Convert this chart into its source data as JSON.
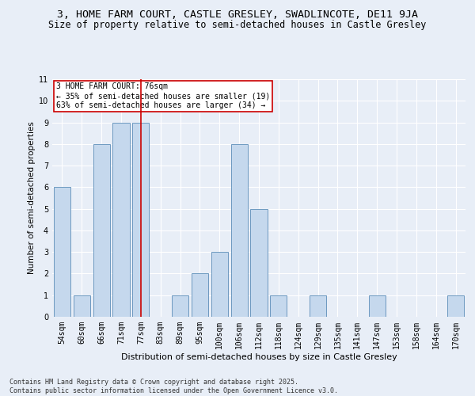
{
  "title1": "3, HOME FARM COURT, CASTLE GRESLEY, SWADLINCOTE, DE11 9JA",
  "title2": "Size of property relative to semi-detached houses in Castle Gresley",
  "xlabel": "Distribution of semi-detached houses by size in Castle Gresley",
  "ylabel": "Number of semi-detached properties",
  "categories": [
    "54sqm",
    "60sqm",
    "66sqm",
    "71sqm",
    "77sqm",
    "83sqm",
    "89sqm",
    "95sqm",
    "100sqm",
    "106sqm",
    "112sqm",
    "118sqm",
    "124sqm",
    "129sqm",
    "135sqm",
    "141sqm",
    "147sqm",
    "153sqm",
    "158sqm",
    "164sqm",
    "170sqm"
  ],
  "values": [
    6,
    1,
    8,
    9,
    9,
    0,
    1,
    2,
    3,
    8,
    5,
    1,
    0,
    1,
    0,
    0,
    1,
    0,
    0,
    0,
    1
  ],
  "bar_color": "#c5d8ed",
  "bar_edge_color": "#5b8db8",
  "highlight_index": 4,
  "vline_color": "#cc0000",
  "annotation_text": "3 HOME FARM COURT: 76sqm\n← 35% of semi-detached houses are smaller (19)\n63% of semi-detached houses are larger (34) →",
  "annotation_box_color": "#ffffff",
  "annotation_box_edge": "#cc0000",
  "ylim": [
    0,
    11
  ],
  "yticks": [
    0,
    1,
    2,
    3,
    4,
    5,
    6,
    7,
    8,
    9,
    10,
    11
  ],
  "background_color": "#e8eef7",
  "grid_color": "#ffffff",
  "footer": "Contains HM Land Registry data © Crown copyright and database right 2025.\nContains public sector information licensed under the Open Government Licence v3.0.",
  "title1_fontsize": 9.5,
  "title2_fontsize": 8.5,
  "xlabel_fontsize": 8,
  "ylabel_fontsize": 7.5,
  "tick_fontsize": 7,
  "annotation_fontsize": 7,
  "footer_fontsize": 6
}
